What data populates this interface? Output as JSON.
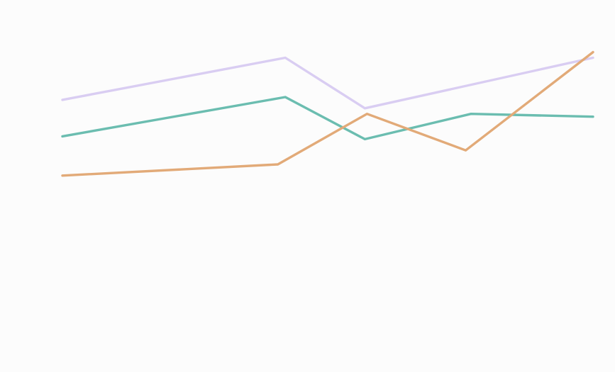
{
  "chart_data": {
    "type": "line",
    "x": [
      0,
      1,
      2,
      3,
      4,
      5
    ],
    "xlim": [
      0,
      5
    ],
    "ylim": [
      0,
      100
    ],
    "grid": false,
    "title": "",
    "xlabel": "",
    "ylabel": "",
    "series": [
      {
        "color": "#d9cdf2",
        "points": [
          {
            "x": 0.0,
            "y": 73
          },
          {
            "x": 2.1,
            "y": 88
          },
          {
            "x": 2.85,
            "y": 70
          },
          {
            "x": 5.0,
            "y": 88
          }
        ]
      },
      {
        "color": "#6bbdb0",
        "points": [
          {
            "x": 0.0,
            "y": 60
          },
          {
            "x": 2.1,
            "y": 74
          },
          {
            "x": 2.85,
            "y": 59
          },
          {
            "x": 3.85,
            "y": 68
          },
          {
            "x": 5.0,
            "y": 67
          }
        ]
      },
      {
        "color": "#e2aa78",
        "points": [
          {
            "x": 0.0,
            "y": 46
          },
          {
            "x": 2.03,
            "y": 50
          },
          {
            "x": 2.87,
            "y": 68
          },
          {
            "x": 3.8,
            "y": 55
          },
          {
            "x": 5.0,
            "y": 90
          }
        ]
      }
    ]
  }
}
